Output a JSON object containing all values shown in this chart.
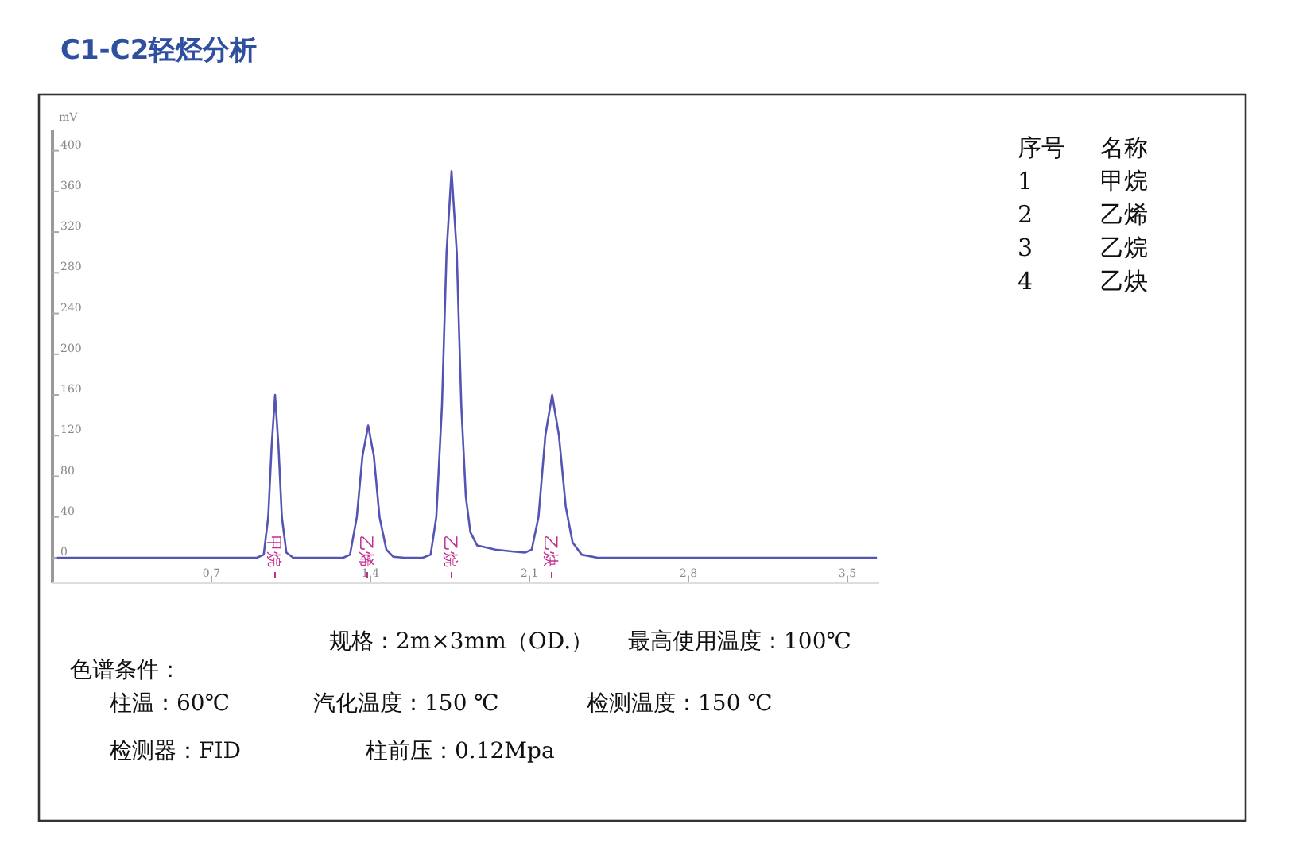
{
  "chart_data": {
    "type": "line",
    "title": "C1-C2轻烃分析",
    "ylabel": "mV",
    "xlim": [
      0,
      3.64
    ],
    "ylim": [
      -25,
      420
    ],
    "xticks": [
      0.7,
      1.4,
      2.1,
      2.8,
      3.5
    ],
    "yticks": [
      0,
      40,
      80,
      120,
      160,
      200,
      240,
      280,
      320,
      360,
      400
    ],
    "grid": false,
    "series": [
      {
        "color": "#5454b4",
        "x": [
          0.02,
          0.9,
          0.93,
          0.95,
          0.965,
          0.98,
          0.995,
          1.01,
          1.03,
          1.06,
          1.28,
          1.31,
          1.34,
          1.365,
          1.39,
          1.415,
          1.44,
          1.47,
          1.5,
          1.55,
          1.63,
          1.665,
          1.69,
          1.715,
          1.735,
          1.757,
          1.78,
          1.8,
          1.82,
          1.84,
          1.87,
          1.95,
          2.03,
          2.08,
          2.11,
          2.14,
          2.17,
          2.2,
          2.23,
          2.26,
          2.29,
          2.33,
          2.4,
          3.63
        ],
        "values": [
          0,
          0,
          3,
          40,
          110,
          160,
          110,
          40,
          5,
          0,
          0,
          3,
          40,
          100,
          130,
          100,
          40,
          8,
          1,
          0,
          0,
          3,
          40,
          150,
          300,
          380,
          300,
          150,
          60,
          25,
          12,
          8,
          6,
          5,
          8,
          40,
          120,
          160,
          120,
          50,
          15,
          3,
          0,
          0
        ]
      }
    ],
    "annotations": [
      "序号",
      "名称",
      "1",
      "甲烷",
      "2",
      "乙烯",
      "3",
      "乙烷",
      "4",
      "乙炔",
      "规格：2m×3mm（OD.）",
      "最高使用温度：100℃",
      "色谱条件：",
      "柱温：60℃",
      "汽化温度：150 ℃",
      "检测温度：150 ℃",
      "检测器：FID",
      "柱前压：0.12Mpa",
      "甲烷",
      "乙烯",
      "乙烷",
      "乙炔"
    ]
  }
}
